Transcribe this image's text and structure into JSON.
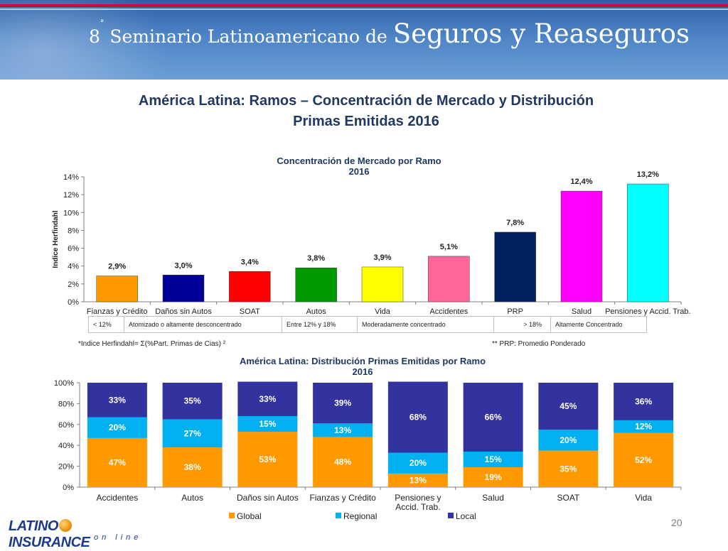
{
  "banner": {
    "ordinal": "8",
    "ordinal_sup": "°",
    "title_pre": " Seminario Latinoamericano de ",
    "title_main": "Seguros y Reaseguros"
  },
  "slide": {
    "title_line1": "América Latina: Ramos – Concentración de Mercado y Distribución",
    "title_line2": "Primas Emitidas 2016"
  },
  "chart_data": [
    {
      "type": "bar",
      "title": "Concentración de Mercado por Ramo",
      "subtitle": "2016",
      "xlabel": "",
      "ylabel": "Indice Herfindahl",
      "ylim": [
        0,
        14
      ],
      "yticks": [
        "0%",
        "2%",
        "4%",
        "6%",
        "8%",
        "10%",
        "12%",
        "14%"
      ],
      "categories": [
        "Fianzas y Crédito",
        "Daños sin Autos",
        "SOAT",
        "Autos",
        "Vida",
        "Accidentes",
        "PRP",
        "Salud",
        "Pensiones y Accid. Trab."
      ],
      "values": [
        2.9,
        3.0,
        3.4,
        3.8,
        3.9,
        5.1,
        7.8,
        12.4,
        13.2
      ],
      "labels": [
        "2,9%",
        "3,0%",
        "3,4%",
        "3,8%",
        "3,9%",
        "5,1%",
        "7,8%",
        "12,4%",
        "13,2%"
      ],
      "colors": [
        "#ff9900",
        "#000099",
        "#ff0000",
        "#009900",
        "#ffff00",
        "#ff6699",
        "#002060",
        "#ff00ff",
        "#00ffff"
      ],
      "grid": false
    },
    {
      "type": "bar",
      "stacked": true,
      "title": "América Latina: Distribución Primas Emitidas por Ramo",
      "subtitle": "2016",
      "xlabel": "",
      "ylabel": "",
      "ylim": [
        0,
        100
      ],
      "yticks": [
        "0%",
        "20%",
        "40%",
        "60%",
        "80%",
        "100%"
      ],
      "categories": [
        "Accidentes",
        "Autos",
        "Daños sin Autos",
        "Fianzas y Crédito",
        "Pensiones y Accid. Trab.",
        "Salud",
        "SOAT",
        "Vida"
      ],
      "series": [
        {
          "name": "Global",
          "color": "#ff9900",
          "values": [
            47,
            38,
            53,
            48,
            13,
            19,
            35,
            52
          ]
        },
        {
          "name": "Regional",
          "color": "#00b0f0",
          "values": [
            20,
            27,
            15,
            13,
            20,
            15,
            20,
            12
          ]
        },
        {
          "name": "Local",
          "color": "#3333a0",
          "values": [
            33,
            35,
            33,
            39,
            68,
            66,
            45,
            36
          ]
        }
      ],
      "legend": "bottom",
      "grid": false
    }
  ],
  "concentration_legend": [
    {
      "range": "< 12%",
      "label": "Atomizado o altamente desconcentrado"
    },
    {
      "range": "Entre 12% y 18%",
      "label": "Moderadamente concentrado"
    },
    {
      "range": "> 18%",
      "label": "Altamente Concentrado"
    }
  ],
  "notes": {
    "herfindahl": "*Indice Herfindahl= Σ(%Part. Primas  de Cias) ²",
    "prp": "** PRP: Promedio Ponderado"
  },
  "footer": {
    "logo_main_a": "LATINO",
    "logo_main_b": "INSURANCE",
    "logo_sub": "on line",
    "page_number": "20"
  }
}
